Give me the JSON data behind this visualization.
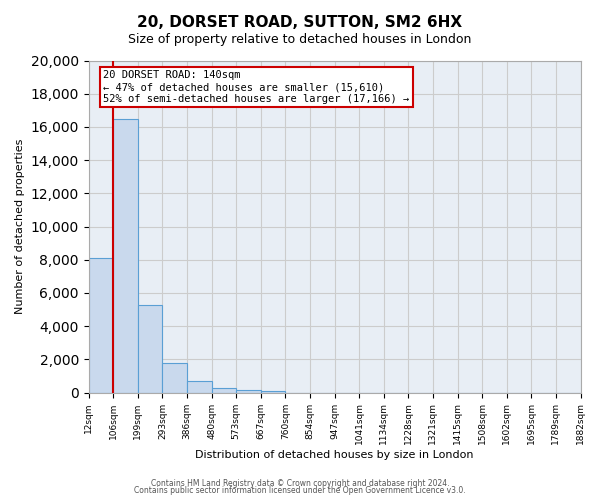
{
  "title": "20, DORSET ROAD, SUTTON, SM2 6HX",
  "subtitle": "Size of property relative to detached houses in London",
  "xlabel": "Distribution of detached houses by size in London",
  "ylabel": "Number of detached properties",
  "bar_values": [
    8100,
    16500,
    5300,
    1800,
    700,
    300,
    150,
    100,
    0,
    0,
    0,
    0,
    0,
    0,
    0,
    0,
    0,
    0,
    0,
    0
  ],
  "bin_labels": [
    "12sqm",
    "106sqm",
    "199sqm",
    "293sqm",
    "386sqm",
    "480sqm",
    "573sqm",
    "667sqm",
    "760sqm",
    "854sqm",
    "947sqm",
    "1041sqm",
    "1134sqm",
    "1228sqm",
    "1321sqm",
    "1415sqm",
    "1508sqm",
    "1602sqm",
    "1695sqm",
    "1789sqm",
    "1882sqm"
  ],
  "bar_color": "#c9d9ed",
  "bar_edge_color": "#5a9fd4",
  "red_line_x": 1,
  "property_size": "140sqm",
  "pct_smaller": 47,
  "n_smaller": 15610,
  "pct_larger_semi": 52,
  "n_larger_semi": 17166,
  "annotation_box_color": "#ffffff",
  "annotation_box_edge": "#cc0000",
  "red_line_color": "#cc0000",
  "ylim": [
    0,
    20000
  ],
  "yticks": [
    0,
    2000,
    4000,
    6000,
    8000,
    10000,
    12000,
    14000,
    16000,
    18000,
    20000
  ],
  "grid_color": "#cccccc",
  "bg_color": "#e8eef5",
  "footer1": "Contains HM Land Registry data © Crown copyright and database right 2024.",
  "footer2": "Contains public sector information licensed under the Open Government Licence v3.0."
}
